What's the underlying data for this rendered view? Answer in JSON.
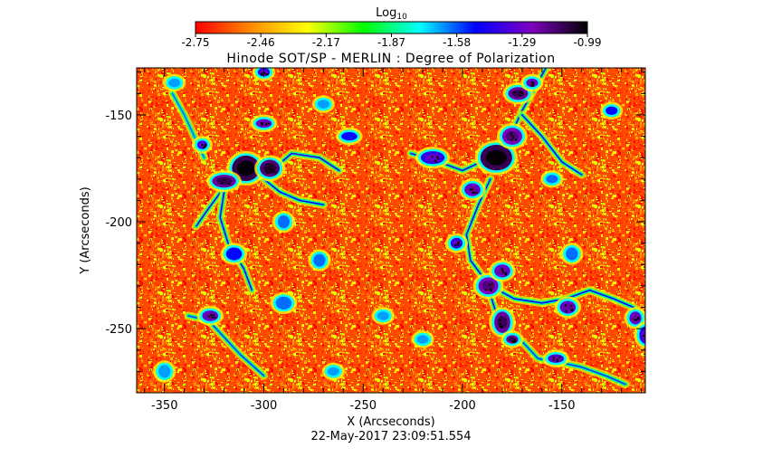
{
  "chart_data": {
    "type": "heatmap",
    "title": "Hinode SOT/SP - MERLIN : Degree of Polarization",
    "colorbar": {
      "label_main": "Log",
      "label_sub": "10",
      "tick_labels": [
        "-2.75",
        "-2.46",
        "-2.17",
        "-1.87",
        "-1.58",
        "-1.29",
        "-0.99"
      ],
      "range": [
        -2.75,
        -0.99
      ],
      "colormap": "rainbow (red to violet/black)",
      "stops": [
        "#ff0000",
        "#ff8c00",
        "#ffff00",
        "#00ff00",
        "#00ffff",
        "#0000ff",
        "#8000c0",
        "#000000"
      ]
    },
    "xlabel": "X (Arcseconds)",
    "ylabel": "Y (Arcseconds)",
    "xlim": [
      -364,
      -108
    ],
    "ylim": [
      -280,
      -128
    ],
    "x_ticks": [
      -350,
      -300,
      -250,
      -200,
      -150
    ],
    "x_tick_labels": [
      "-350",
      "-300",
      "-250",
      "-200",
      "-150"
    ],
    "y_ticks": [
      -150,
      -200,
      -250
    ],
    "y_tick_labels": [
      "-150",
      "-200",
      "-250"
    ],
    "timestamp": "22-May-2017 23:09:51.554",
    "background_level": "mostly -2.75 to -2.3 (red/orange/yellow)",
    "features": [
      {
        "x": -300,
        "y": -154,
        "w": 4,
        "h": 2,
        "value": -1.2
      },
      {
        "x": -309,
        "y": -175,
        "w": 7,
        "h": 6,
        "value": -1.0
      },
      {
        "x": -320,
        "y": -181,
        "w": 6,
        "h": 3,
        "value": -1.1
      },
      {
        "x": -297,
        "y": -175,
        "w": 5,
        "h": 4,
        "value": -1.05
      },
      {
        "x": -331,
        "y": -164,
        "w": 2.5,
        "h": 2,
        "value": -1.3
      },
      {
        "x": -257,
        "y": -160,
        "w": 4,
        "h": 2,
        "value": -1.4
      },
      {
        "x": -183,
        "y": -170,
        "w": 8,
        "h": 6,
        "value": -1.0
      },
      {
        "x": -175,
        "y": -160,
        "w": 5,
        "h": 4,
        "value": -1.15
      },
      {
        "x": -172,
        "y": -140,
        "w": 5,
        "h": 3,
        "value": -1.1
      },
      {
        "x": -165,
        "y": -135,
        "w": 3,
        "h": 2,
        "value": -1.2
      },
      {
        "x": -215,
        "y": -170,
        "w": 6,
        "h": 3,
        "value": -1.3
      },
      {
        "x": -195,
        "y": -185,
        "w": 4,
        "h": 3,
        "value": -1.2
      },
      {
        "x": -203,
        "y": -210,
        "w": 3,
        "h": 2.5,
        "value": -1.3
      },
      {
        "x": -187,
        "y": -230,
        "w": 5,
        "h": 4,
        "value": -1.15
      },
      {
        "x": -180,
        "y": -223,
        "w": 4,
        "h": 3,
        "value": -1.2
      },
      {
        "x": -180,
        "y": -247,
        "w": 4,
        "h": 5,
        "value": -1.1
      },
      {
        "x": -175,
        "y": -255,
        "w": 3,
        "h": 2,
        "value": -1.1
      },
      {
        "x": -147,
        "y": -240,
        "w": 4,
        "h": 3,
        "value": -1.2
      },
      {
        "x": -113,
        "y": -245,
        "w": 3,
        "h": 3,
        "value": -1.2
      },
      {
        "x": -108,
        "y": -253,
        "w": 3,
        "h": 4,
        "value": -1.3
      },
      {
        "x": -153,
        "y": -264,
        "w": 4,
        "h": 2,
        "value": -1.25
      },
      {
        "x": -327,
        "y": -244,
        "w": 4,
        "h": 2.5,
        "value": -1.2
      },
      {
        "x": -315,
        "y": -215,
        "w": 4,
        "h": 3,
        "value": -1.4
      },
      {
        "x": -290,
        "y": -238,
        "w": 4,
        "h": 3,
        "value": -1.5
      },
      {
        "x": -272,
        "y": -218,
        "w": 3,
        "h": 3,
        "value": -1.5
      },
      {
        "x": -300,
        "y": -130,
        "w": 3,
        "h": 2,
        "value": -1.3
      },
      {
        "x": -270,
        "y": -145,
        "w": 3,
        "h": 2,
        "value": -1.6
      },
      {
        "x": -290,
        "y": -200,
        "w": 3,
        "h": 3,
        "value": -1.5
      },
      {
        "x": -240,
        "y": -244,
        "w": 3,
        "h": 2,
        "value": -1.6
      },
      {
        "x": -155,
        "y": -180,
        "w": 3,
        "h": 2,
        "value": -1.5
      },
      {
        "x": -125,
        "y": -148,
        "w": 3,
        "h": 2,
        "value": -1.4
      },
      {
        "x": -145,
        "y": -215,
        "w": 3,
        "h": 3,
        "value": -1.5
      },
      {
        "x": -220,
        "y": -255,
        "w": 3,
        "h": 2,
        "value": -1.6
      },
      {
        "x": -345,
        "y": -135,
        "w": 3,
        "h": 2,
        "value": -1.7
      },
      {
        "x": -350,
        "y": -270,
        "w": 3,
        "h": 3,
        "value": -1.6
      },
      {
        "x": -265,
        "y": -270,
        "w": 3,
        "h": 2,
        "value": -1.6
      }
    ],
    "filaments": [
      {
        "value": -1.4,
        "points": [
          [
            -334,
            -202
          ],
          [
            -328,
            -194
          ],
          [
            -320,
            -184
          ],
          [
            -308,
            -176
          ],
          [
            -296,
            -176
          ],
          [
            -286,
            -168
          ],
          [
            -272,
            -170
          ],
          [
            -262,
            -176
          ]
        ]
      },
      {
        "value": -1.45,
        "points": [
          [
            -320,
            -186
          ],
          [
            -322,
            -198
          ],
          [
            -318,
            -210
          ],
          [
            -310,
            -222
          ],
          [
            -306,
            -232
          ]
        ]
      },
      {
        "value": -1.5,
        "points": [
          [
            -300,
            -180
          ],
          [
            -292,
            -186
          ],
          [
            -282,
            -190
          ],
          [
            -270,
            -192
          ]
        ]
      },
      {
        "value": -1.4,
        "points": [
          [
            -226,
            -168
          ],
          [
            -212,
            -172
          ],
          [
            -200,
            -176
          ],
          [
            -186,
            -170
          ],
          [
            -176,
            -160
          ],
          [
            -170,
            -148
          ],
          [
            -164,
            -138
          ],
          [
            -158,
            -128
          ]
        ]
      },
      {
        "value": -1.45,
        "points": [
          [
            -186,
            -180
          ],
          [
            -192,
            -192
          ],
          [
            -198,
            -206
          ],
          [
            -196,
            -218
          ],
          [
            -188,
            -228
          ],
          [
            -184,
            -240
          ],
          [
            -180,
            -252
          ]
        ]
      },
      {
        "value": -1.5,
        "points": [
          [
            -170,
            -150
          ],
          [
            -160,
            -160
          ],
          [
            -150,
            -172
          ],
          [
            -140,
            -178
          ]
        ]
      },
      {
        "value": -1.5,
        "points": [
          [
            -186,
            -230
          ],
          [
            -174,
            -236
          ],
          [
            -160,
            -238
          ],
          [
            -148,
            -236
          ],
          [
            -136,
            -232
          ],
          [
            -124,
            -236
          ],
          [
            -114,
            -240
          ],
          [
            -108,
            -250
          ]
        ]
      },
      {
        "value": -1.55,
        "points": [
          [
            -170,
            -256
          ],
          [
            -162,
            -264
          ],
          [
            -150,
            -266
          ],
          [
            -140,
            -268
          ],
          [
            -128,
            -272
          ],
          [
            -118,
            -276
          ]
        ]
      },
      {
        "value": -1.55,
        "points": [
          [
            -338,
            -244
          ],
          [
            -328,
            -246
          ],
          [
            -320,
            -254
          ],
          [
            -312,
            -262
          ],
          [
            -300,
            -272
          ]
        ]
      },
      {
        "value": -1.6,
        "points": [
          [
            -346,
            -140
          ],
          [
            -340,
            -150
          ],
          [
            -334,
            -162
          ],
          [
            -330,
            -170
          ]
        ]
      }
    ]
  }
}
